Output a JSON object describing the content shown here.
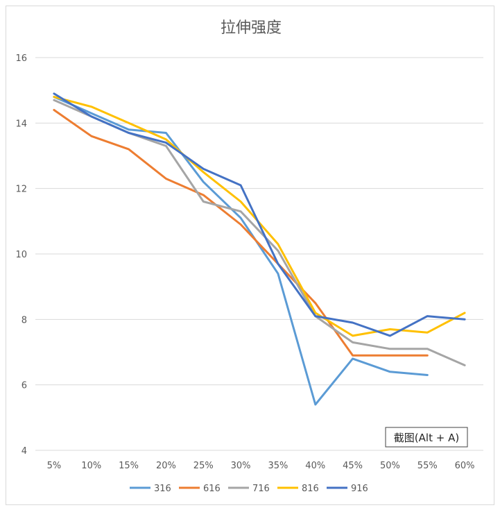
{
  "chart_data": {
    "type": "line",
    "title": "拉伸强度",
    "categories": [
      "5%",
      "10%",
      "15%",
      "20%",
      "25%",
      "30%",
      "35%",
      "40%",
      "45%",
      "50%",
      "55%",
      "60%"
    ],
    "y_ticks": [
      "4",
      "6",
      "8",
      "10",
      "12",
      "14",
      "16"
    ],
    "ylim": [
      4,
      16
    ],
    "grid": true,
    "legend_position": "bottom",
    "series": [
      {
        "name": "316",
        "color": "#5B9BD5",
        "values": [
          14.8,
          14.3,
          13.8,
          13.7,
          12.2,
          11.1,
          9.4,
          5.4,
          6.8,
          6.4,
          6.3,
          null
        ]
      },
      {
        "name": "616",
        "color": "#ED7D31",
        "values": [
          14.4,
          13.6,
          13.2,
          12.3,
          11.8,
          10.9,
          9.7,
          8.5,
          6.9,
          6.9,
          6.9,
          null
        ]
      },
      {
        "name": "716",
        "color": "#A5A5A5",
        "values": [
          14.7,
          14.2,
          13.7,
          13.3,
          11.6,
          11.3,
          10.1,
          8.1,
          7.3,
          7.1,
          7.1,
          6.6
        ]
      },
      {
        "name": "816",
        "color": "#FFC000",
        "values": [
          14.8,
          14.5,
          14.0,
          13.5,
          12.5,
          11.6,
          10.3,
          8.2,
          7.5,
          7.7,
          7.6,
          8.2
        ]
      },
      {
        "name": "916",
        "color": "#4472C4",
        "values": [
          14.9,
          14.2,
          13.7,
          13.4,
          12.6,
          12.1,
          9.7,
          8.1,
          7.9,
          7.5,
          8.1,
          8.0
        ]
      }
    ]
  },
  "tooltip": {
    "label": "截图(Alt + A)"
  }
}
